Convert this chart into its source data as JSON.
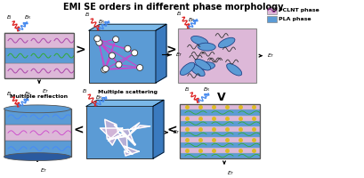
{
  "title": "EMI SE orders in different phase morphology",
  "title_fontsize": 7.0,
  "title_fontweight": "bold",
  "bg_color": "#ffffff",
  "pclnt_color": "#ddb8d8",
  "pla_color": "#5b9bd5",
  "pla_light": "#7ab8e8",
  "pla_dark": "#3a7abf",
  "legend_pclnt": "PCLNT phase",
  "legend_pla": "PLA phase",
  "red_wave": "#dd2222",
  "blue_wave": "#4488ee"
}
